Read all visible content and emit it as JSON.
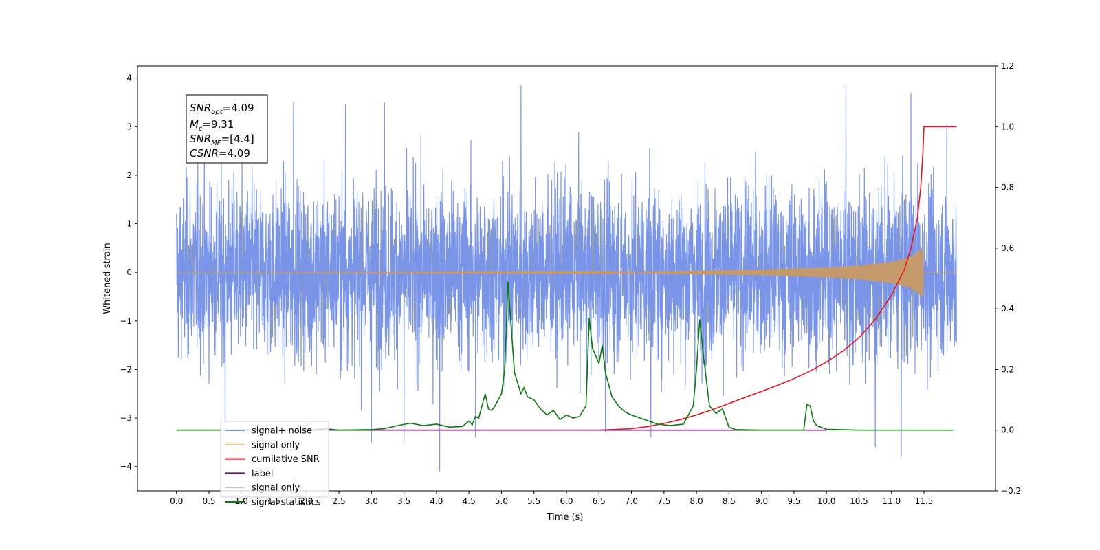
{
  "chart_data": {
    "type": "line",
    "xlabel": "Time (s)",
    "ylabel": "Whitened strain",
    "xlim": [
      -0.6,
      12.6
    ],
    "ylim": [
      -4.5,
      4.25
    ],
    "y2lim": [
      -0.2,
      1.2
    ],
    "x_ticks": [
      "0.0",
      "0.5",
      "1.0",
      "1.5",
      "2.0",
      "2.5",
      "3.0",
      "3.5",
      "4.0",
      "4.5",
      "5.0",
      "5.5",
      "6.0",
      "6.5",
      "7.0",
      "7.5",
      "8.0",
      "8.5",
      "9.0",
      "9.5",
      "10.0",
      "10.5",
      "11.0",
      "11.5"
    ],
    "y_ticks": [
      "4",
      "3",
      "2",
      "1",
      "0",
      "−1",
      "−2",
      "−3",
      "−4"
    ],
    "y2_ticks": [
      "1.2",
      "1.0",
      "0.8",
      "0.6",
      "0.4",
      "0.2",
      "0.0",
      "−0.2"
    ],
    "annotation": {
      "snr_opt": "4.09",
      "mc": "9.31",
      "snr_mf": "[4.4]",
      "csnr": "4.09"
    },
    "legend": {
      "placement": "lower-left",
      "entries": [
        {
          "label": "signal+ noise",
          "color": "#7a95e8"
        },
        {
          "label": "signal only",
          "color": "#f5c27a"
        },
        {
          "label": "cumilative SNR",
          "color": "#e8141a"
        },
        {
          "label": "label",
          "color": "#6a0f6a"
        },
        {
          "label": "signal only",
          "color": "#c8c8c8"
        },
        {
          "label": "signal statistics",
          "color": "#0a7a0a"
        }
      ]
    },
    "series": [
      {
        "name": "signal+ noise",
        "axis": "left",
        "color": "#7a95e8",
        "description_points": {
          "t_start": 0.0,
          "t_end": 12.0,
          "spread_std": 0.9,
          "peaks": [
            [
              5.3,
              3.85
            ],
            [
              10.3,
              3.85
            ],
            [
              11.3,
              3.7
            ],
            [
              3.2,
              3.5
            ],
            [
              1.8,
              3.5
            ],
            [
              2.6,
              3.45
            ],
            [
              4.05,
              -4.1
            ],
            [
              11.15,
              -3.8
            ],
            [
              10.75,
              -3.6
            ],
            [
              3.0,
              -3.5
            ],
            [
              3.5,
              -3.5
            ],
            [
              0.75,
              -3.45
            ],
            [
              7.3,
              -3.4
            ],
            [
              4.6,
              -3.4
            ],
            [
              6.6,
              -3.3
            ],
            [
              11.85,
              3.05
            ]
          ]
        }
      },
      {
        "name": "signal only",
        "axis": "left",
        "color": "#c49a6c",
        "envelope": [
          [
            0.0,
            0.0
          ],
          [
            7.0,
            0.01
          ],
          [
            8.0,
            0.04
          ],
          [
            9.0,
            0.06
          ],
          [
            10.0,
            0.1
          ],
          [
            10.5,
            0.14
          ],
          [
            11.0,
            0.22
          ],
          [
            11.3,
            0.32
          ],
          [
            11.48,
            0.5
          ],
          [
            11.5,
            0.0
          ],
          [
            12.0,
            0.0
          ]
        ]
      },
      {
        "name": "cumilative SNR",
        "axis": "right",
        "color": "#e8141a",
        "x": [
          0.0,
          6.5,
          7.0,
          7.25,
          7.5,
          7.75,
          8.0,
          8.25,
          8.5,
          8.75,
          9.0,
          9.25,
          9.5,
          9.75,
          10.0,
          10.25,
          10.5,
          10.75,
          11.0,
          11.2,
          11.3,
          11.4,
          11.45,
          11.48,
          11.5,
          12.0
        ],
        "y": [
          0.0,
          0.0,
          0.005,
          0.012,
          0.022,
          0.035,
          0.05,
          0.068,
          0.088,
          0.108,
          0.128,
          0.148,
          0.17,
          0.195,
          0.225,
          0.26,
          0.305,
          0.365,
          0.445,
          0.53,
          0.6,
          0.7,
          0.8,
          0.9,
          1.0,
          1.0
        ]
      },
      {
        "name": "label",
        "axis": "right",
        "color": "#6a0f6a",
        "x": [
          0.7,
          10.0
        ],
        "y": [
          0.0,
          0.0
        ]
      },
      {
        "name": "signal statistics",
        "axis": "right",
        "color": "#0a7a0a",
        "x": [
          0.0,
          1.5,
          2.0,
          2.3,
          2.5,
          3.0,
          3.2,
          3.4,
          3.6,
          3.8,
          4.0,
          4.2,
          4.4,
          4.5,
          4.55,
          4.6,
          4.65,
          4.7,
          4.75,
          4.8,
          4.85,
          4.9,
          5.0,
          5.05,
          5.1,
          5.15,
          5.2,
          5.3,
          5.35,
          5.4,
          5.5,
          5.6,
          5.7,
          5.8,
          5.9,
          6.0,
          6.1,
          6.2,
          6.3,
          6.35,
          6.4,
          6.5,
          6.55,
          6.6,
          6.7,
          6.8,
          6.9,
          7.0,
          7.2,
          7.4,
          7.6,
          7.8,
          7.95,
          8.0,
          8.05,
          8.1,
          8.2,
          8.3,
          8.4,
          8.5,
          8.6,
          9.0,
          9.5,
          9.65,
          9.7,
          9.75,
          9.8,
          9.85,
          10.0,
          10.5,
          11.5,
          11.95
        ],
        "y": [
          0.0,
          0.0,
          0.0,
          0.005,
          0.0,
          0.002,
          0.005,
          0.015,
          0.023,
          0.015,
          0.02,
          0.01,
          0.012,
          0.03,
          0.018,
          0.045,
          0.04,
          0.08,
          0.12,
          0.07,
          0.065,
          0.08,
          0.12,
          0.2,
          0.49,
          0.34,
          0.19,
          0.12,
          0.14,
          0.11,
          0.1,
          0.07,
          0.05,
          0.065,
          0.035,
          0.05,
          0.04,
          0.045,
          0.08,
          0.37,
          0.27,
          0.22,
          0.28,
          0.19,
          0.11,
          0.08,
          0.06,
          0.05,
          0.035,
          0.02,
          0.015,
          0.02,
          0.08,
          0.2,
          0.365,
          0.26,
          0.08,
          0.055,
          0.07,
          0.01,
          0.002,
          0.0,
          0.0,
          0.0,
          0.085,
          0.08,
          0.03,
          0.015,
          0.003,
          0.0,
          0.0,
          0.0
        ]
      }
    ]
  }
}
